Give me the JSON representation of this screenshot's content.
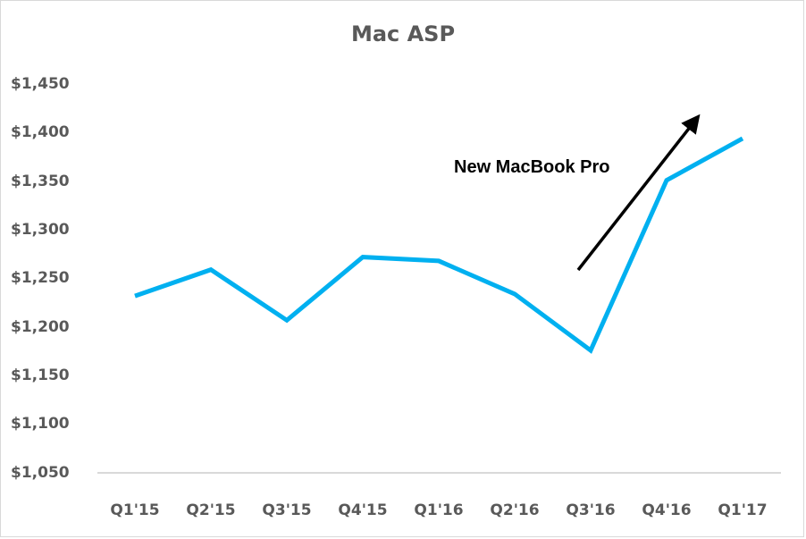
{
  "chart_data": {
    "type": "line",
    "title": "Mac ASP",
    "xlabel": "",
    "ylabel": "",
    "categories": [
      "Q1'15",
      "Q2'15",
      "Q3'15",
      "Q4'15",
      "Q1'16",
      "Q2'16",
      "Q3'16",
      "Q4'16",
      "Q1'17"
    ],
    "series": [
      {
        "name": "Mac ASP",
        "color": "#00b0f0",
        "values": [
          1232,
          1259,
          1207,
          1272,
          1268,
          1234,
          1176,
          1351,
          1394
        ]
      }
    ],
    "ylim": [
      1050,
      1450
    ],
    "yticks": [
      "$1,450",
      "$1,400",
      "$1,350",
      "$1,300",
      "$1,250",
      "$1,200",
      "$1,150",
      "$1,100",
      "$1,050"
    ],
    "grid": false,
    "legend": "none",
    "annotations": [
      {
        "text": "New MacBook Pro",
        "type": "arrow",
        "from": "Q3'16 ~ $1,260",
        "to": "Q4'16+ ~ $1,420",
        "color": "#000000"
      }
    ]
  }
}
